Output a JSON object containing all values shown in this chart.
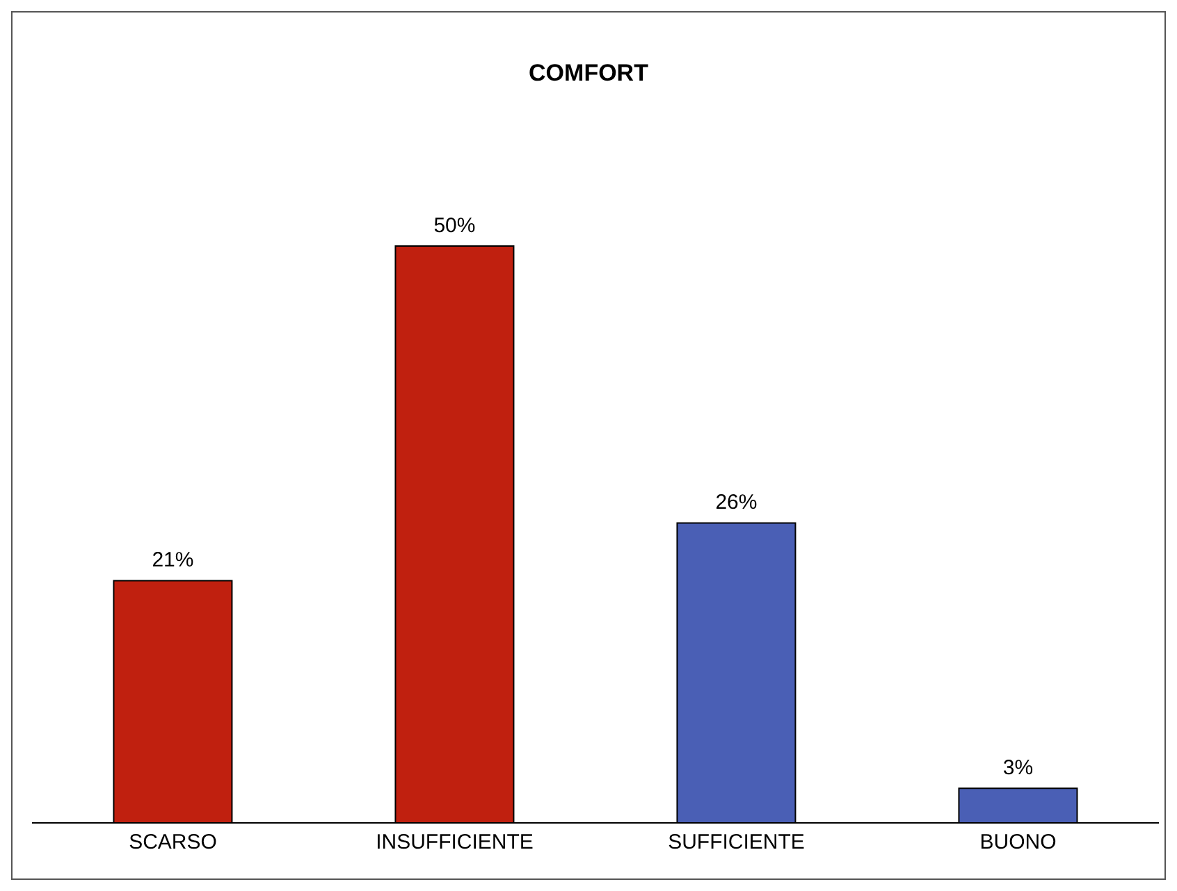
{
  "chart_data": {
    "type": "bar",
    "title": "COMFORT",
    "categories": [
      "SCARSO",
      "INSUFFICIENTE",
      "SUFFICIENTE",
      "BUONO"
    ],
    "values": [
      21,
      50,
      26,
      3
    ],
    "colors": [
      "#c0200f",
      "#c0200f",
      "#4a5fb5",
      "#4a5fb5"
    ],
    "value_labels": [
      "21%",
      "50%",
      "26%",
      "3%"
    ]
  }
}
